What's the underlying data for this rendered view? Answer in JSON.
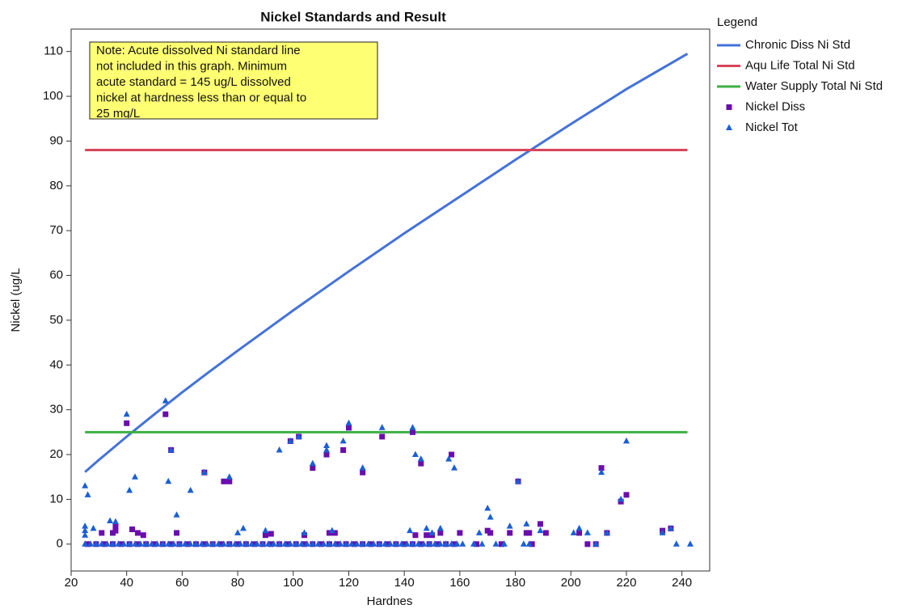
{
  "chart_data": {
    "type": "scatter",
    "title": "Nickel Standards and Result",
    "x_label": "Hardnes",
    "y_label": "Nickel (ug/L",
    "legend_title": "Legend",
    "annotation": [
      "Note: Acute dissolved Ni standard line",
      "not included in this graph.  Minimum",
      "acute standard = 145 ug/L dissolved",
      "nickel at hardness less than or equal to",
      "25 mg/L"
    ],
    "xlim": [
      20,
      250
    ],
    "ylim": [
      -6,
      115
    ],
    "xticks": [
      20,
      40,
      60,
      80,
      100,
      120,
      140,
      160,
      180,
      200,
      220,
      240
    ],
    "yticks": [
      0,
      10,
      20,
      30,
      40,
      50,
      60,
      70,
      80,
      90,
      100,
      110
    ],
    "grid": false,
    "series": [
      {
        "name": "Chronic Diss Ni Std",
        "style": "line",
        "color": "#4472d9",
        "x": [
          25,
          30,
          40,
          50,
          60,
          70,
          80,
          90,
          100,
          120,
          140,
          160,
          180,
          200,
          220,
          242
        ],
        "values": [
          16.1,
          18.8,
          24.0,
          29.0,
          33.9,
          38.6,
          43.2,
          47.7,
          52.2,
          60.9,
          69.4,
          77.6,
          85.8,
          93.8,
          101.6,
          109.5
        ]
      },
      {
        "name": "Aqu Life Total Ni Std",
        "style": "line",
        "color": "#d9455a",
        "x": [
          25,
          242
        ],
        "values": [
          88,
          88
        ]
      },
      {
        "name": "Water Supply Total Ni Std",
        "style": "line",
        "color": "#3cb043",
        "x": [
          25,
          242
        ],
        "values": [
          25,
          25
        ]
      },
      {
        "name": "Nickel Diss",
        "style": "square",
        "color": "#6a0dad",
        "x": [
          31,
          35,
          36,
          36,
          40,
          42,
          44,
          46,
          54,
          56,
          58,
          68,
          75,
          77,
          90,
          92,
          99,
          102,
          104,
          107,
          112,
          113,
          115,
          118,
          120,
          125,
          132,
          143,
          144,
          146,
          148,
          150,
          153,
          157,
          160,
          170,
          171,
          178,
          181,
          184,
          185,
          189,
          191,
          203,
          211,
          213,
          218,
          220,
          233,
          236,
          26,
          29,
          32,
          35,
          38,
          41,
          44,
          47,
          50,
          53,
          56,
          59,
          62,
          65,
          68,
          71,
          74,
          77,
          80,
          83,
          86,
          89,
          92,
          95,
          98,
          101,
          104,
          107,
          110,
          113,
          116,
          119,
          122,
          125,
          128,
          131,
          134,
          137,
          140,
          143,
          146,
          149,
          152,
          155,
          158,
          166,
          175,
          186,
          206,
          209
        ],
        "values": [
          2.5,
          2.5,
          4,
          3,
          27,
          3.3,
          2.5,
          2,
          29,
          21,
          2.5,
          16,
          14,
          14,
          2,
          2.3,
          23,
          24,
          2,
          17,
          20,
          2.5,
          2.5,
          21,
          26,
          16,
          24,
          25,
          2,
          18,
          2,
          2,
          2.5,
          20,
          2.5,
          3,
          2.5,
          2.5,
          14,
          2.5,
          2.5,
          4.5,
          2.5,
          2.5,
          17,
          2.5,
          9.5,
          11,
          3,
          3.5,
          0,
          0,
          0,
          0,
          0,
          0,
          0,
          0,
          0,
          0,
          0,
          0,
          0,
          0,
          0,
          0,
          0,
          0,
          0,
          0,
          0,
          0,
          0,
          0,
          0,
          0,
          0,
          0,
          0,
          0,
          0,
          0,
          0,
          0,
          0,
          0,
          0,
          0,
          0,
          0,
          0,
          0,
          0,
          0,
          0,
          0,
          0,
          0,
          0,
          0
        ]
      },
      {
        "name": "Nickel Tot",
        "style": "triangle",
        "color": "#1a5fd6",
        "x": [
          25,
          26,
          25,
          25,
          25,
          28,
          34,
          36,
          40,
          41,
          43,
          54,
          55,
          56,
          58,
          63,
          68,
          77,
          80,
          82,
          90,
          95,
          99,
          102,
          104,
          107,
          112,
          112,
          114,
          118,
          120,
          125,
          132,
          142,
          143,
          144,
          146,
          148,
          150,
          153,
          156,
          158,
          167,
          170,
          171,
          178,
          181,
          184,
          189,
          201,
          203,
          206,
          211,
          213,
          218,
          220,
          233,
          236,
          25,
          27,
          29,
          31,
          33,
          35,
          37,
          39,
          41,
          43,
          45,
          47,
          49,
          51,
          53,
          55,
          57,
          59,
          61,
          63,
          65,
          67,
          69,
          71,
          73,
          75,
          77,
          79,
          81,
          83,
          85,
          87,
          89,
          91,
          93,
          95,
          97,
          99,
          101,
          103,
          105,
          107,
          109,
          111,
          113,
          115,
          117,
          119,
          121,
          123,
          125,
          127,
          129,
          131,
          133,
          135,
          137,
          139,
          141,
          143,
          145,
          147,
          149,
          151,
          153,
          155,
          157,
          159,
          161,
          165,
          168,
          173,
          176,
          183,
          185,
          209,
          238,
          243
        ],
        "values": [
          13,
          11,
          4,
          3,
          2,
          3.5,
          5.2,
          5,
          29,
          12,
          15,
          32,
          14,
          21,
          6.5,
          12,
          16,
          15,
          2.5,
          3.5,
          3,
          21,
          23,
          24,
          2.5,
          18,
          22,
          21,
          3,
          23,
          27,
          17,
          26,
          3,
          26,
          20,
          19,
          3.5,
          2.5,
          3.5,
          19,
          17,
          2.5,
          8,
          6,
          4,
          14,
          4.5,
          3,
          2.5,
          3.5,
          2.5,
          16,
          2.5,
          10,
          23,
          2.5,
          3.5,
          0,
          0,
          0,
          0,
          0,
          0,
          0,
          0,
          0,
          0,
          0,
          0,
          0,
          0,
          0,
          0,
          0,
          0,
          0,
          0,
          0,
          0,
          0,
          0,
          0,
          0,
          0,
          0,
          0,
          0,
          0,
          0,
          0,
          0,
          0,
          0,
          0,
          0,
          0,
          0,
          0,
          0,
          0,
          0,
          0,
          0,
          0,
          0,
          0,
          0,
          0,
          0,
          0,
          0,
          0,
          0,
          0,
          0,
          0,
          0,
          0,
          0,
          0,
          0,
          0,
          0,
          0,
          0,
          0,
          0,
          0,
          0,
          0,
          0,
          0,
          0,
          0,
          0
        ]
      }
    ]
  }
}
